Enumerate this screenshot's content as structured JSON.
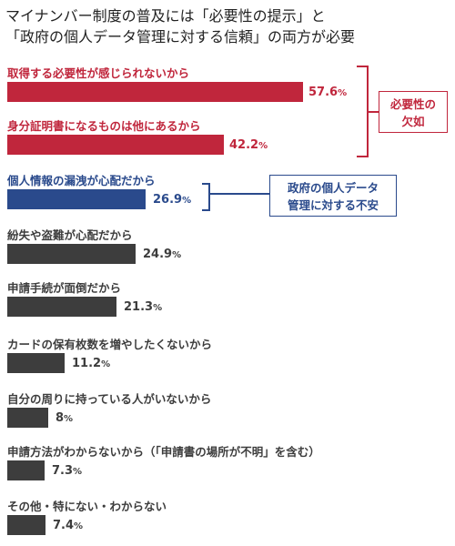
{
  "title_line1": "マイナンバー制度の普及には「必要性の提示」と",
  "title_line2": "「政府の個人データ管理に対する信頼」の両方が必要",
  "colors": {
    "red": "#c0263c",
    "blue": "#2a4a8c",
    "dark": "#3d3d3d"
  },
  "chart_data": {
    "type": "bar",
    "orientation": "horizontal",
    "unit": "%",
    "categories": [
      "取得する必要性が感じられないから",
      "身分証明書になるものは他にあるから",
      "個人情報の漏洩が心配だから",
      "紛失や盗難が心配だから",
      "申請手続が面倒だから",
      "カードの保有枚数を増やしたくないから",
      "自分の周りに持っている人がいないから",
      "申請方法がわからないから（「申請書の場所が不明」を含む）",
      "その他・特にない・わからない"
    ],
    "values": [
      57.6,
      42.2,
      26.9,
      24.9,
      21.3,
      11.2,
      8,
      7.3,
      7.4
    ],
    "value_labels": [
      "57.6",
      "42.2",
      "26.9",
      "24.9",
      "21.3",
      "11.2",
      "8",
      "7.3",
      "7.4"
    ],
    "groups": [
      "red",
      "red",
      "blue",
      "dark",
      "dark",
      "dark",
      "dark",
      "dark",
      "dark"
    ],
    "xlim": [
      0,
      68
    ]
  },
  "callouts": {
    "red": [
      "必要性の",
      "欠如"
    ],
    "blue": [
      "政府の個人データ",
      "管理に対する不安"
    ]
  }
}
